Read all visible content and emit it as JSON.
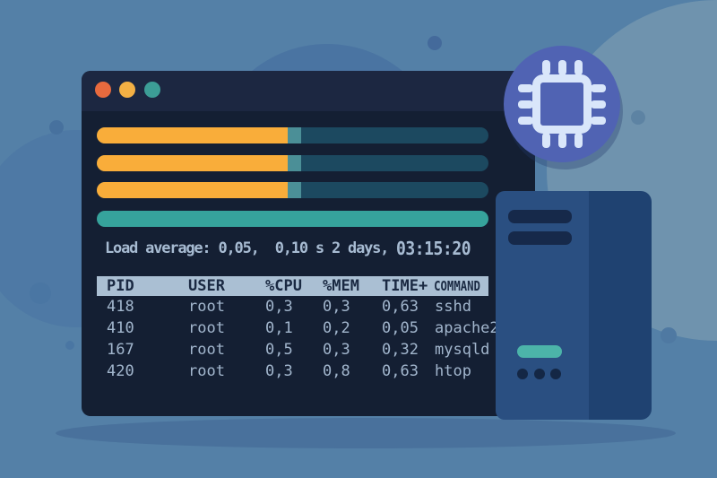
{
  "scene": {
    "background_color": "#5480a7",
    "accent_orange": "#f9ad3a",
    "accent_teal": "#36a39c"
  },
  "terminal": {
    "traffic_lights": [
      {
        "name": "close",
        "color": "#e76a3e"
      },
      {
        "name": "minimize",
        "color": "#f3b044"
      },
      {
        "name": "maximize",
        "color": "#3c9d96"
      }
    ],
    "meters": [
      {
        "fill_color": "#f9ad3a",
        "fill_pct": 48.7,
        "notch_color": "#4b8f97",
        "notch_pct": 3.5
      },
      {
        "fill_color": "#f9ad3a",
        "fill_pct": 48.7,
        "notch_color": "#4b8f97",
        "notch_pct": 3.5
      },
      {
        "fill_color": "#f9ad3a",
        "fill_pct": 48.7,
        "notch_color": "#4b8f97",
        "notch_pct": 3.5
      },
      {
        "fill_color": "#36a39c",
        "fill_pct": 100,
        "notch_color": "#36a39c",
        "notch_pct": 0
      }
    ],
    "load_average": {
      "label": "Load average: 0,05,  0,10 s 2 days, ",
      "time": "03:15:20"
    },
    "table": {
      "columns": [
        "PID",
        "USER",
        "%CPU",
        "%MEM",
        "TIME+",
        "COMMAND"
      ],
      "rows": [
        [
          "418",
          "root",
          "0,3",
          "0,3",
          "0,63",
          "sshd"
        ],
        [
          "410",
          "root",
          "0,1",
          "0,2",
          "0,05",
          "apache2"
        ],
        [
          "167",
          "root",
          "0,5",
          "0,3",
          "0,32",
          "mysqld"
        ],
        [
          "420",
          "root",
          "0,3",
          "0,8",
          "0,63",
          "htop"
        ]
      ]
    }
  },
  "server": {
    "front_color": "#2a4f81",
    "side_color": "#1f4271",
    "power_light_color": "#4cb4a9"
  },
  "chip_badge": {
    "circle_color": "#5063b3",
    "chip_color": "#d9e6fa"
  }
}
